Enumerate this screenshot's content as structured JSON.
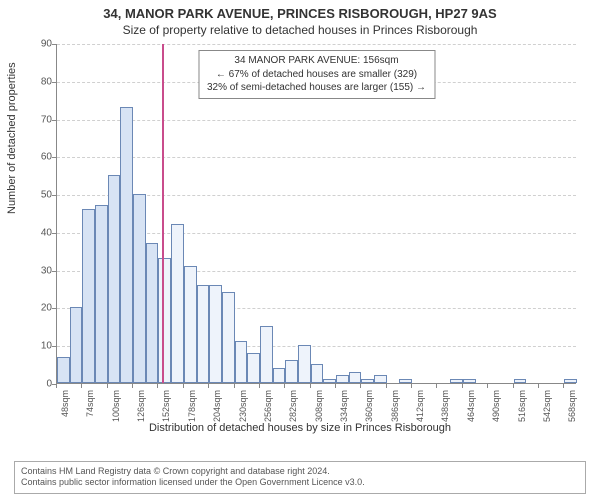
{
  "title": "34, MANOR PARK AVENUE, PRINCES RISBOROUGH, HP27 9AS",
  "subtitle": "Size of property relative to detached houses in Princes Risborough",
  "y_axis_label": "Number of detached properties",
  "x_axis_label": "Distribution of detached houses by size in Princes Risborough",
  "info_box": {
    "line1": "34 MANOR PARK AVENUE: 156sqm",
    "line2": "← 67% of detached houses are smaller (329)",
    "line3": "32% of semi-detached houses are larger (155) →"
  },
  "footer": {
    "line1": "Contains HM Land Registry data © Crown copyright and database right 2024.",
    "line2": "Contains public sector information licensed under the Open Government Licence v3.0."
  },
  "chart": {
    "type": "histogram",
    "ylim": [
      0,
      90
    ],
    "ytick_step": 10,
    "background_color": "#ffffff",
    "grid_color": "#d0d0d0",
    "axis_color": "#888888",
    "bar_border_color": "#6b88b5",
    "bar_fill_left": "#d7e3f4",
    "bar_fill_right": "#eef3fb",
    "marker_color": "#c94c8c",
    "marker_x_value": 156,
    "x_start": 48,
    "x_step": 13,
    "x_unit": "sqm",
    "x_tick_count": 21,
    "values": [
      7,
      20,
      46,
      47,
      55,
      73,
      50,
      37,
      33,
      42,
      31,
      26,
      26,
      24,
      11,
      8,
      15,
      4,
      6,
      10,
      5,
      1,
      2,
      3,
      1,
      2,
      0,
      1,
      0,
      0,
      0,
      1,
      1,
      0,
      0,
      0,
      1,
      0,
      0,
      0,
      1
    ]
  }
}
